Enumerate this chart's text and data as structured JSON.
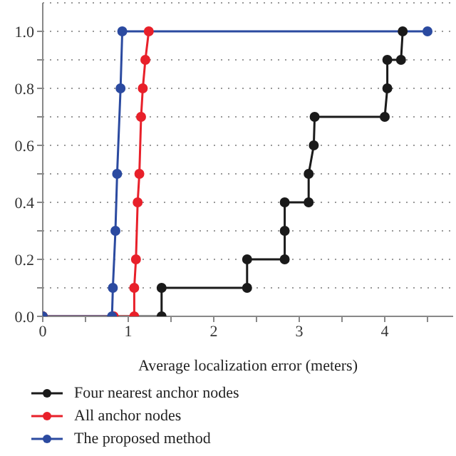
{
  "chart_data": {
    "type": "line",
    "xlabel": "Average localization error (meters)",
    "xlim": [
      0,
      4.8
    ],
    "xticks": [
      0,
      {
        "value": 0.5,
        "label": null
      },
      1,
      {
        "value": 1.5,
        "label": null
      },
      2,
      {
        "value": 2.5,
        "label": null
      },
      3,
      {
        "value": 3.5,
        "label": null
      },
      4,
      {
        "value": 4.5,
        "label": null
      }
    ],
    "ylim": [
      0,
      1.1
    ],
    "yticks": [
      {
        "value": 0,
        "label": "0.0"
      },
      {
        "value": 0.1,
        "label": null
      },
      {
        "value": 0.2,
        "label": "0.2"
      },
      {
        "value": 0.3,
        "label": null
      },
      {
        "value": 0.4,
        "label": "0.4"
      },
      {
        "value": 0.5,
        "label": null
      },
      {
        "value": 0.6,
        "label": "0.6"
      },
      {
        "value": 0.7,
        "label": null
      },
      {
        "value": 0.8,
        "label": "0.8"
      },
      {
        "value": 0.9,
        "label": null
      },
      {
        "value": 1.0,
        "label": "1.0"
      }
    ],
    "grid": "y",
    "legend": "bottom",
    "marker": "circle",
    "line_style": "solid",
    "series": [
      {
        "name": "Four nearest anchor nodes",
        "color": "#1a1a1a",
        "x": [
          0,
          1.39,
          1.39,
          2.39,
          2.39,
          2.83,
          2.83,
          2.83,
          3.11,
          3.11,
          3.17,
          3.18,
          4.0,
          4.03,
          4.03,
          4.19,
          4.21
        ],
        "values": [
          0,
          0,
          0.1,
          0.1,
          0.2,
          0.2,
          0.3,
          0.4,
          0.4,
          0.5,
          0.6,
          0.7,
          0.7,
          0.8,
          0.9,
          0.9,
          1.0
        ]
      },
      {
        "name": "All anchor nodes",
        "color": "#e8202a",
        "x": [
          0,
          0.83,
          1.07,
          1.07,
          1.09,
          1.11,
          1.13,
          1.15,
          1.17,
          1.2,
          1.24
        ],
        "values": [
          0,
          0,
          0,
          0.1,
          0.2,
          0.4,
          0.5,
          0.7,
          0.8,
          0.9,
          1.0
        ]
      },
      {
        "name": "The proposed method",
        "color": "#2b4aa0",
        "x": [
          0,
          0.81,
          0.82,
          0.85,
          0.87,
          0.91,
          0.93,
          4.5
        ],
        "values": [
          0,
          0,
          0.1,
          0.3,
          0.5,
          0.8,
          1.0,
          1.0
        ]
      }
    ]
  }
}
